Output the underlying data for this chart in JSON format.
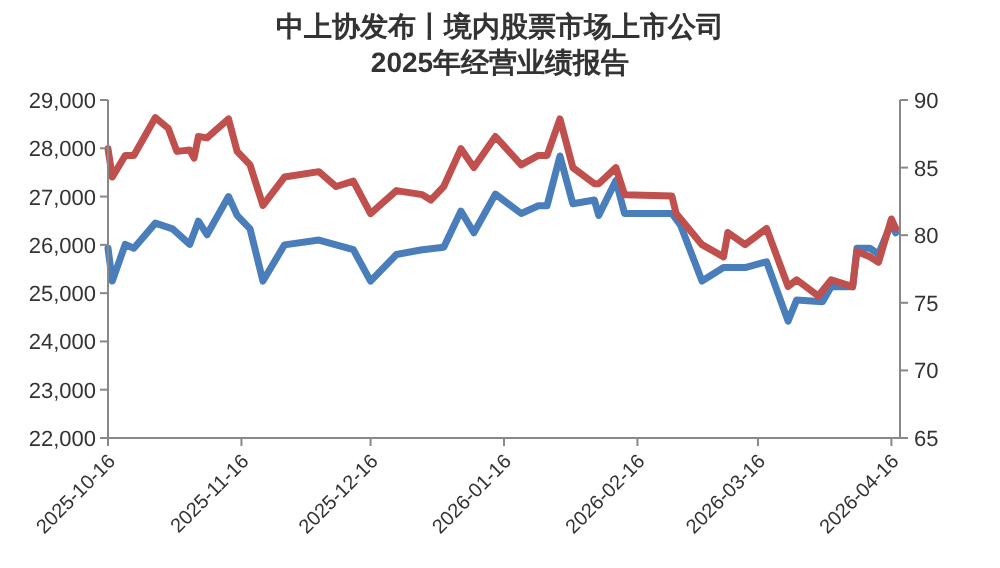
{
  "chart_data": {
    "type": "line",
    "title": "中上协发布丨境内股票市场上市公司\n2025年经营业绩报告",
    "xlim": [
      "2025-10-16",
      "2026-04-18"
    ],
    "xticks": [
      "2025-10-16",
      "2025-11-16",
      "2025-12-16",
      "2026-01-16",
      "2026-02-16",
      "2026-03-16",
      "2026-04-16"
    ],
    "ylim": [
      22000,
      29000
    ],
    "yticks": [
      {
        "value": 22000,
        "label": "22,000"
      },
      {
        "value": 23000,
        "label": "23,000"
      },
      {
        "value": 24000,
        "label": "24,000"
      },
      {
        "value": 25000,
        "label": "25,000"
      },
      {
        "value": 26000,
        "label": "26,000"
      },
      {
        "value": 27000,
        "label": "27,000"
      },
      {
        "value": 28000,
        "label": "28,000"
      },
      {
        "value": 29000,
        "label": "29,000"
      }
    ],
    "y2lim": [
      65,
      90
    ],
    "y2ticks": [
      65,
      70,
      75,
      80,
      85,
      90
    ],
    "grid": false,
    "marker": "none",
    "line_style": "solid",
    "series": [
      {
        "color": "#4a7ebb",
        "x": [
          "2025-10-16",
          "2025-10-17",
          "2025-10-20",
          "2025-10-22",
          "2025-10-27",
          "2025-10-31",
          "2025-11-04",
          "2025-11-06",
          "2025-11-08",
          "2025-11-13",
          "2025-11-15",
          "2025-11-18",
          "2025-11-21",
          "2025-11-26",
          "2025-12-04",
          "2025-12-12",
          "2025-12-16",
          "2025-12-22",
          "2025-12-28",
          "2026-01-02",
          "2026-01-06",
          "2026-01-09",
          "2026-01-14",
          "2026-01-20",
          "2026-01-24",
          "2026-01-26",
          "2026-01-29",
          "2026-02-01",
          "2026-02-06",
          "2026-02-07",
          "2026-02-11",
          "2026-02-13",
          "2026-02-24",
          "2026-02-26",
          "2026-03-03",
          "2026-03-08",
          "2026-03-13",
          "2026-03-18",
          "2026-03-23",
          "2026-03-25",
          "2026-03-31",
          "2026-04-02",
          "2026-04-07",
          "2026-04-08",
          "2026-04-11",
          "2026-04-13",
          "2026-04-16",
          "2026-04-17"
        ],
        "values": [
          25930,
          25250,
          26010,
          25930,
          26450,
          26330,
          26010,
          26490,
          26210,
          27000,
          26610,
          26330,
          25250,
          26000,
          26100,
          25900,
          25250,
          25800,
          25900,
          25950,
          26700,
          26250,
          27050,
          26650,
          26810,
          26810,
          27840,
          26850,
          26930,
          26610,
          27330,
          26650,
          26650,
          26410,
          25250,
          25530,
          25530,
          25650,
          24420,
          24860,
          24820,
          25130,
          25130,
          25930,
          25930,
          25810,
          26450,
          26250
        ]
      },
      {
        "color": "#c0504d",
        "axis": "y2",
        "x": [
          "2025-10-16",
          "2025-10-17",
          "2025-10-20",
          "2025-10-22",
          "2025-10-27",
          "2025-10-30",
          "2025-11-01",
          "2025-11-04",
          "2025-11-05",
          "2025-11-06",
          "2025-11-08",
          "2025-11-13",
          "2025-11-15",
          "2025-11-18",
          "2025-11-21",
          "2025-11-26",
          "2025-12-04",
          "2025-12-08",
          "2025-12-12",
          "2025-12-16",
          "2025-12-22",
          "2025-12-28",
          "2025-12-30",
          "2026-01-02",
          "2026-01-06",
          "2026-01-09",
          "2026-01-14",
          "2026-01-20",
          "2026-01-24",
          "2026-01-26",
          "2026-01-29",
          "2026-02-01",
          "2026-02-06",
          "2026-02-07",
          "2026-02-11",
          "2026-02-13",
          "2026-02-24",
          "2026-02-25",
          "2026-03-03",
          "2026-03-08",
          "2026-03-09",
          "2026-03-13",
          "2026-03-18",
          "2026-03-23",
          "2026-03-25",
          "2026-03-30",
          "2026-04-02",
          "2026-04-07",
          "2026-04-08",
          "2026-04-11",
          "2026-04-13",
          "2026-04-16",
          "2026-04-17"
        ],
        "values": [
          86.4,
          84.3,
          85.9,
          85.9,
          88.7,
          87.9,
          86.2,
          86.3,
          85.7,
          87.3,
          87.2,
          88.6,
          86.2,
          85.2,
          82.2,
          84.3,
          84.7,
          83.6,
          84.0,
          81.6,
          83.3,
          83.0,
          82.6,
          83.6,
          86.4,
          85.0,
          87.3,
          85.2,
          85.9,
          85.9,
          88.6,
          85.0,
          83.8,
          83.8,
          85.0,
          83.0,
          82.9,
          81.6,
          79.3,
          78.4,
          80.2,
          79.3,
          80.5,
          76.2,
          76.7,
          75.5,
          76.7,
          76.2,
          78.8,
          78.4,
          78.0,
          81.2,
          80.5
        ]
      }
    ]
  }
}
